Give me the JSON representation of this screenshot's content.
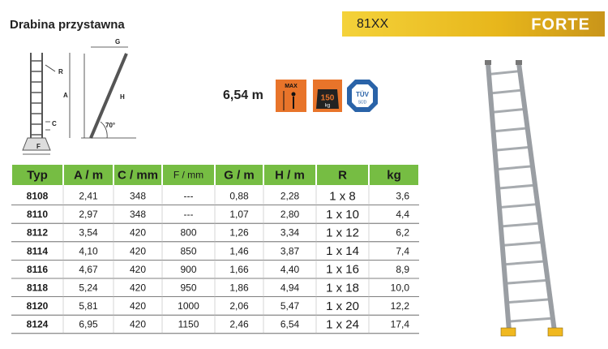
{
  "header": {
    "title": "Drabina przystawna",
    "model": "81XX",
    "brand": "FORTE"
  },
  "diagram": {
    "r": "R",
    "a": "A",
    "c": "C",
    "f": "F",
    "g": "G",
    "h": "H",
    "angle": "70°"
  },
  "max_height": "6,54 m",
  "icons": {
    "max": "MAX",
    "load": "150",
    "load_unit": "kg",
    "cert": "TÜV",
    "cert_sub": "SÜD"
  },
  "table": {
    "columns": [
      "Typ",
      "A / m",
      "C / mm",
      "F / mm",
      "G / m",
      "H / m",
      "R",
      "kg"
    ],
    "rows": [
      [
        "8108",
        "2,41",
        "348",
        "---",
        "0,88",
        "2,28",
        "1 x 8",
        "3,6"
      ],
      [
        "8110",
        "2,97",
        "348",
        "---",
        "1,07",
        "2,80",
        "1 x 10",
        "4,4"
      ],
      [
        "8112",
        "3,54",
        "420",
        "800",
        "1,26",
        "3,34",
        "1 x 12",
        "6,2"
      ],
      [
        "8114",
        "4,10",
        "420",
        "850",
        "1,46",
        "3,87",
        "1 x 14",
        "7,4"
      ],
      [
        "8116",
        "4,67",
        "420",
        "900",
        "1,66",
        "4,40",
        "1 x 16",
        "8,9"
      ],
      [
        "8118",
        "5,24",
        "420",
        "950",
        "1,86",
        "4,94",
        "1 x 18",
        "10,0"
      ],
      [
        "8120",
        "5,81",
        "420",
        "1000",
        "2,06",
        "5,47",
        "1 x 20",
        "12,2"
      ],
      [
        "8124",
        "6,95",
        "420",
        "1150",
        "2,46",
        "6,54",
        "1 x 24",
        "17,4"
      ]
    ]
  }
}
